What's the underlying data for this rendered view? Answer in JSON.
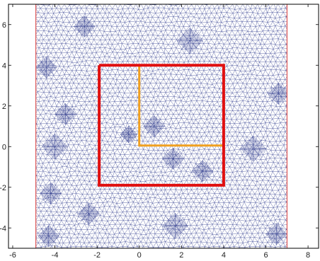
{
  "chart_data": {
    "type": "scatter",
    "description_kind": "finite-element triangular mesh with overlaid boundary paths",
    "xlim": [
      -6.2,
      8.5
    ],
    "ylim": [
      -5.0,
      7.0
    ],
    "x_ticks": [
      -6,
      -4,
      -2,
      0,
      2,
      4,
      6,
      8
    ],
    "y_ticks": [
      -4,
      -2,
      0,
      2,
      4,
      6
    ],
    "x_tick_labels": [
      "-6",
      "-4",
      "-2",
      "0",
      "2",
      "4",
      "6",
      "8"
    ],
    "y_tick_labels": [
      "-4",
      "-2",
      "0",
      "2",
      "4",
      "6"
    ],
    "grid": false,
    "mesh_domain": {
      "x": [
        -4.9,
        7.0
      ],
      "y": [
        -5.0,
        7.0
      ]
    },
    "mesh_boundary_color": "#cc0000",
    "mesh_color": "#2e3a8c",
    "refined_patches": [
      {
        "cx": -4.4,
        "cy": 3.9,
        "r": 0.5
      },
      {
        "cx": -4.0,
        "cy": 0.0,
        "r": 0.6
      },
      {
        "cx": -3.5,
        "cy": 1.6,
        "r": 0.5
      },
      {
        "cx": -4.2,
        "cy": -2.3,
        "r": 0.5
      },
      {
        "cx": -4.3,
        "cy": -4.4,
        "r": 0.5
      },
      {
        "cx": -2.4,
        "cy": -3.3,
        "r": 0.5
      },
      {
        "cx": -0.5,
        "cy": 0.6,
        "r": 0.4
      },
      {
        "cx": 0.7,
        "cy": 1.0,
        "r": 0.5
      },
      {
        "cx": 1.6,
        "cy": -0.6,
        "r": 0.5
      },
      {
        "cx": 3.0,
        "cy": -1.2,
        "r": 0.5
      },
      {
        "cx": 2.4,
        "cy": 5.2,
        "r": 0.6
      },
      {
        "cx": 5.4,
        "cy": -0.1,
        "r": 0.6
      },
      {
        "cx": 6.6,
        "cy": 2.6,
        "r": 0.5
      },
      {
        "cx": 6.5,
        "cy": -4.3,
        "r": 0.5
      },
      {
        "cx": 1.7,
        "cy": -3.9,
        "r": 0.6
      },
      {
        "cx": -2.6,
        "cy": 5.9,
        "r": 0.5
      }
    ],
    "red_square": {
      "color": "#e01010",
      "points": [
        [
          -1.9,
          4.0
        ],
        [
          4.0,
          4.0
        ],
        [
          4.0,
          -1.9
        ],
        [
          -1.9,
          -1.9
        ],
        [
          -1.9,
          4.0
        ]
      ]
    },
    "orange_path": {
      "color": "#f0a020",
      "points": [
        [
          0.0,
          3.95
        ],
        [
          0.0,
          0.05
        ],
        [
          3.95,
          0.05
        ]
      ]
    }
  }
}
